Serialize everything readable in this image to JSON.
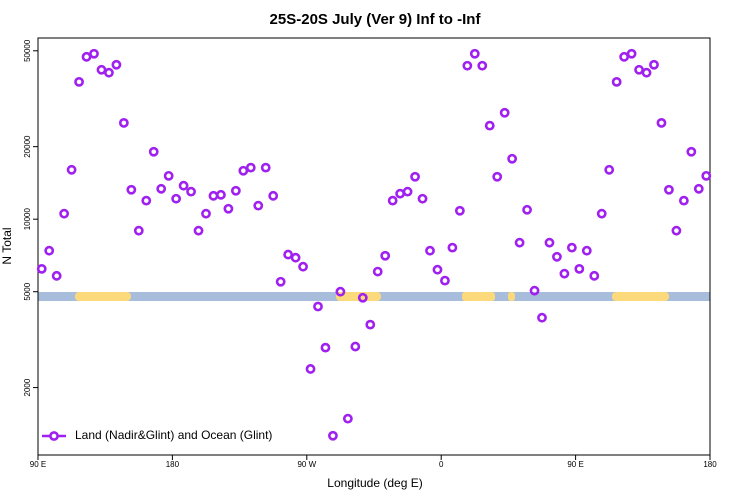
{
  "chart_data": {
    "type": "scatter",
    "title": "25S-20S July (Ver 9)   Inf to -Inf",
    "xlabel": "Longitude (deg E)",
    "ylabel": "N Total",
    "x": [
      92.5,
      97.5,
      102.5,
      107.5,
      112.5,
      117.5,
      122.5,
      127.5,
      132.5,
      137.5,
      142.5,
      147.5,
      152.5,
      157.5,
      162.5,
      167.5,
      172.5,
      177.5,
      182.5,
      187.5,
      192.5,
      197.5,
      202.5,
      207.5,
      212.5,
      217.5,
      222.5,
      227.5,
      232.5,
      237.5,
      242.5,
      247.5,
      252.5,
      257.5,
      262.5,
      267.5,
      272.5,
      277.5,
      282.5,
      287.5,
      292.5,
      297.5,
      302.5,
      307.5,
      312.5,
      317.5,
      322.5,
      327.5,
      332.5,
      337.5,
      342.5,
      347.5,
      352.5,
      357.5,
      362.5,
      367.5,
      372.5,
      377.5,
      382.5,
      387.5,
      392.5,
      397.5,
      402.5,
      407.5,
      412.5,
      417.5,
      422.5,
      427.5,
      432.5,
      437.5,
      442.5,
      447.5,
      452.5,
      457.5,
      462.5,
      467.5,
      472.5,
      477.5,
      482.5,
      487.5,
      492.5,
      497.5,
      502.5,
      507.5,
      512.5,
      517.5,
      522.5,
      527.5,
      532.5,
      537.5
    ],
    "series": [
      {
        "name": "Land (Nadir&Glint) and Ocean (Glint)",
        "color": "#a020f0",
        "values": [
          6220,
          7400,
          5820,
          10540,
          16030,
          37150,
          47200,
          48600,
          41700,
          40550,
          43750,
          25100,
          13250,
          8960,
          11940,
          19050,
          13370,
          15130,
          12160,
          13770,
          13010,
          8960,
          10540,
          12500,
          12620,
          11050,
          13120,
          15890,
          16370,
          11380,
          16370,
          12500,
          5500,
          7130,
          6920,
          6350,
          2390,
          4340,
          2930,
          1262,
          5000,
          1486,
          2960,
          4720,
          3650,
          6060,
          7050,
          11940,
          12760,
          13010,
          15000,
          12160,
          7400,
          6170,
          5560,
          7620,
          10840,
          43350,
          48600,
          43350,
          24450,
          15000,
          27650,
          17820,
          7990,
          10940,
          5050,
          3900,
          7990,
          6980,
          5940,
          7620,
          6220,
          7400,
          5820,
          10540,
          16030,
          37150,
          47200,
          48600,
          41700,
          40550,
          43750,
          25100,
          13250,
          8960,
          11940,
          19050,
          13370,
          15130
        ]
      }
    ],
    "xlim": [
      90,
      540
    ],
    "xticks": [
      {
        "value": 90,
        "label": "90 E"
      },
      180,
      {
        "value": 270,
        "label": "90 W"
      },
      {
        "value": 360,
        "label": "0"
      },
      {
        "value": 450,
        "label": "90 E"
      },
      {
        "value": 540,
        "label": "180"
      }
    ],
    "ylim": [
      1050,
      56500
    ],
    "yscale": "log",
    "yticks": [
      2000,
      5000,
      10000,
      20000,
      50000
    ],
    "legend": "lower left"
  }
}
